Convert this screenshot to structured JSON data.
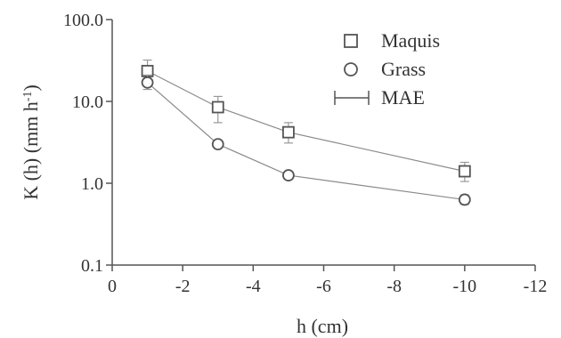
{
  "chart_data": {
    "type": "scatter",
    "xlabel": "h (cm)",
    "ylabel": "K (h) (mm h",
    "ylabel_superscript": "-1",
    "ylabel_close": ")",
    "x_ticks": [
      0,
      -2,
      -4,
      -6,
      -8,
      -10,
      -12
    ],
    "x_tick_labels": [
      "0",
      "-2",
      "-4",
      "-6",
      "-8",
      "-10",
      "-12"
    ],
    "xlim": [
      0,
      -12
    ],
    "y_scale": "log",
    "y_ticks": [
      0.1,
      1,
      10,
      100
    ],
    "y_tick_labels": [
      "0.1",
      "1.0",
      "10.0",
      "100.0"
    ],
    "ylim": [
      0.1,
      100
    ],
    "grid": false,
    "legend_position": "top-right",
    "series": [
      {
        "name": "Maquis",
        "marker": "square",
        "x": [
          -1,
          -3,
          -5,
          -10
        ],
        "y": [
          23.5,
          8.5,
          4.2,
          1.4
        ],
        "err_low": [
          17,
          5.5,
          3.1,
          1.05
        ],
        "err_high": [
          32,
          11.5,
          5.5,
          1.8
        ]
      },
      {
        "name": "Grass",
        "marker": "circle",
        "x": [
          -1,
          -3,
          -5,
          -10
        ],
        "y": [
          17,
          3.0,
          1.25,
          0.63
        ],
        "err_low": [
          14,
          2.8,
          1.15,
          0.55
        ],
        "err_high": [
          21,
          3.2,
          1.35,
          0.72
        ]
      }
    ],
    "legend": [
      {
        "label": "Maquis",
        "symbol": "square"
      },
      {
        "label": "Grass",
        "symbol": "circle"
      },
      {
        "label": "MAE",
        "symbol": "errorbar"
      }
    ],
    "colors": {
      "axis": "#555555",
      "line": "#8a8a8a",
      "marker": "#555555",
      "errorbar": "#999999",
      "text": "#333333"
    }
  }
}
